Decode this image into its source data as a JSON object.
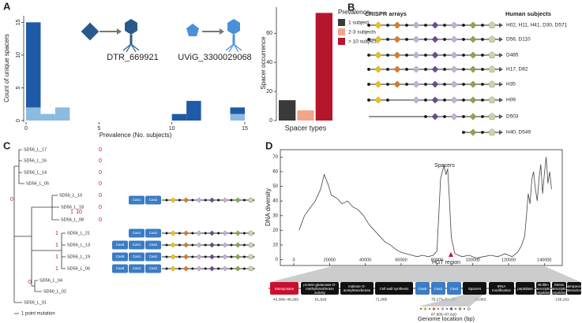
{
  "panels": {
    "a": {
      "label": "A",
      "phages": [
        "DTR_669921",
        "UViG_3300029068"
      ]
    },
    "b": {
      "label": "B",
      "arrays_title": "CRISPR arrays",
      "subjects_title": "Human subjects",
      "subjects": [
        "H02, H11, H41, D30, D571",
        "D56, D110",
        "D485",
        "H17, D82",
        "H35",
        "H09",
        "D503",
        "H40, D549"
      ]
    },
    "c": {
      "label": "C",
      "leaves": [
        "SD56_L_17",
        "SD56_L_16",
        "SD56_L_14",
        "SD56_L_05",
        "SD56_L_10",
        "SD56_L_18",
        "SD56_L_08",
        "SD56_L_21",
        "SD56_L_13",
        "SD56_L_19",
        "SD56_L_06",
        "SD56_L_04",
        "SD56_L_02",
        "SD56_L_01"
      ],
      "mutations": [
        "0",
        "0",
        "0",
        "0",
        "0",
        "0",
        "0",
        "0",
        "1",
        "10",
        "1",
        "1",
        "1",
        "1",
        "0"
      ],
      "operons": [
        [
          "Cas1",
          "Cas2"
        ],
        [
          "Cas1",
          "Cas2"
        ],
        [
          "Cas9",
          "Cas1",
          "Cas2"
        ],
        [
          "Cas9",
          "Cas1",
          "Cas2"
        ],
        [
          "Cas9",
          "Cas1",
          "Cas2"
        ]
      ],
      "scale": "1 point mutation"
    },
    "d": {
      "label": "D",
      "annotations": [
        "Spacers",
        "HGT region"
      ],
      "genes": [
        {
          "label": "transposase",
          "color": "#c8102e"
        },
        {
          "label": "protein-glutamate-O-methyltransferase activity",
          "color": "#111111"
        },
        {
          "label": "maltose O-acetyltransferase",
          "color": "#111111"
        },
        {
          "label": "Cell wall synthesis",
          "color": "#111111"
        },
        {
          "label": "Cas9",
          "color": "#3b7cc4"
        },
        {
          "label": "Cas1",
          "color": "#3b7cc4"
        },
        {
          "label": "Cas2",
          "color": "#3b7cc4"
        },
        {
          "label": "Spacers",
          "color": "#111111"
        },
        {
          "label": "tRNA modification",
          "color": "#111111"
        },
        {
          "label": "peptidase",
          "color": "#111111"
        },
        {
          "label": "Biofilm transcription regulator",
          "color": "#111111"
        },
        {
          "label": "Stress transcription regulator",
          "color": "#111111"
        },
        {
          "label": "Interspecies interaction",
          "color": "#111111"
        }
      ],
      "coords": [
        "43,366–48,265",
        "61,829",
        "71,085",
        "75,173–81,280",
        "88,063",
        "135,161",
        "87,805–87,620"
      ],
      "location_label": "Genome location (bp)"
    }
  },
  "chart_data": [
    {
      "type": "histogram",
      "ylabel": "Count of unique spacers",
      "xlabel": "Prevalence (No. subjects)",
      "bins": [
        0,
        1,
        2,
        3,
        4,
        5,
        6,
        7,
        8,
        9,
        10,
        11,
        12,
        13,
        14,
        15
      ],
      "series": [
        {
          "color": "#8bbbe0",
          "values": [
            2,
            1,
            2,
            0,
            0,
            0,
            0,
            0,
            0,
            0,
            0,
            0,
            0,
            0,
            1
          ]
        },
        {
          "color": "#1f5aa6",
          "values": [
            13,
            0,
            0,
            0,
            0,
            0,
            0,
            0,
            0,
            0,
            1,
            3,
            0,
            0,
            1
          ]
        }
      ],
      "xlim": [
        0,
        15
      ],
      "xticks": [
        0,
        5,
        10,
        15
      ],
      "ylim": [
        0,
        16
      ],
      "yticks": [
        0,
        5,
        10,
        15
      ]
    },
    {
      "type": "bar",
      "ylabel": "Spacer occurrence",
      "xlabel": "Spacer types",
      "legend_title": "Prevalence",
      "categories": [
        "1 subject",
        "2-3 subjects",
        "> 10 subjects"
      ],
      "colors": [
        "#3a3a3a",
        "#f2a58a",
        "#b5162c"
      ],
      "values": [
        14,
        7,
        74
      ],
      "ylim": [
        0,
        78
      ],
      "yticks": [
        0,
        20,
        40,
        60
      ]
    },
    {
      "type": "line",
      "ylabel": "DNA diversity",
      "x": [
        3000,
        6000,
        9000,
        12000,
        15000,
        17000,
        19000,
        21000,
        24000,
        27000,
        30000,
        33000,
        36000,
        39000,
        42000,
        45000,
        48000,
        51000,
        54000,
        57000,
        60000,
        63000,
        66000,
        69000,
        72000,
        75000,
        78000,
        80000,
        81000,
        82000,
        83000,
        84000,
        85000,
        86000,
        87000,
        88000,
        90000,
        94000,
        98000,
        102000,
        106000,
        110000,
        114000,
        118000,
        122000,
        125000,
        127000,
        129000,
        130000,
        131000,
        132000,
        133000,
        134000,
        135000,
        136000,
        137000,
        138000,
        139000,
        140000,
        141000,
        142000,
        143000,
        144000
      ],
      "series": [
        {
          "color": "#444444",
          "values": [
            20,
            30,
            35,
            40,
            48,
            58,
            52,
            44,
            42,
            38,
            40,
            36,
            34,
            30,
            24,
            20,
            16,
            12,
            10,
            7,
            5,
            4,
            3,
            2,
            3,
            2,
            3,
            6,
            30,
            55,
            60,
            64,
            58,
            62,
            40,
            15,
            4,
            2,
            3,
            1,
            2,
            3,
            2,
            4,
            2,
            5,
            9,
            16,
            30,
            45,
            38,
            55,
            60,
            48,
            40,
            55,
            65,
            45,
            58,
            70,
            52,
            60,
            48
          ]
        }
      ],
      "xlim": [
        -7500,
        150000
      ],
      "xticks": [
        0,
        20000,
        40000,
        60000,
        80000,
        100000,
        120000,
        140000
      ],
      "ylim": [
        -4,
        75
      ],
      "yticks": [
        0,
        10,
        20,
        30,
        40,
        50,
        60,
        70
      ]
    }
  ]
}
